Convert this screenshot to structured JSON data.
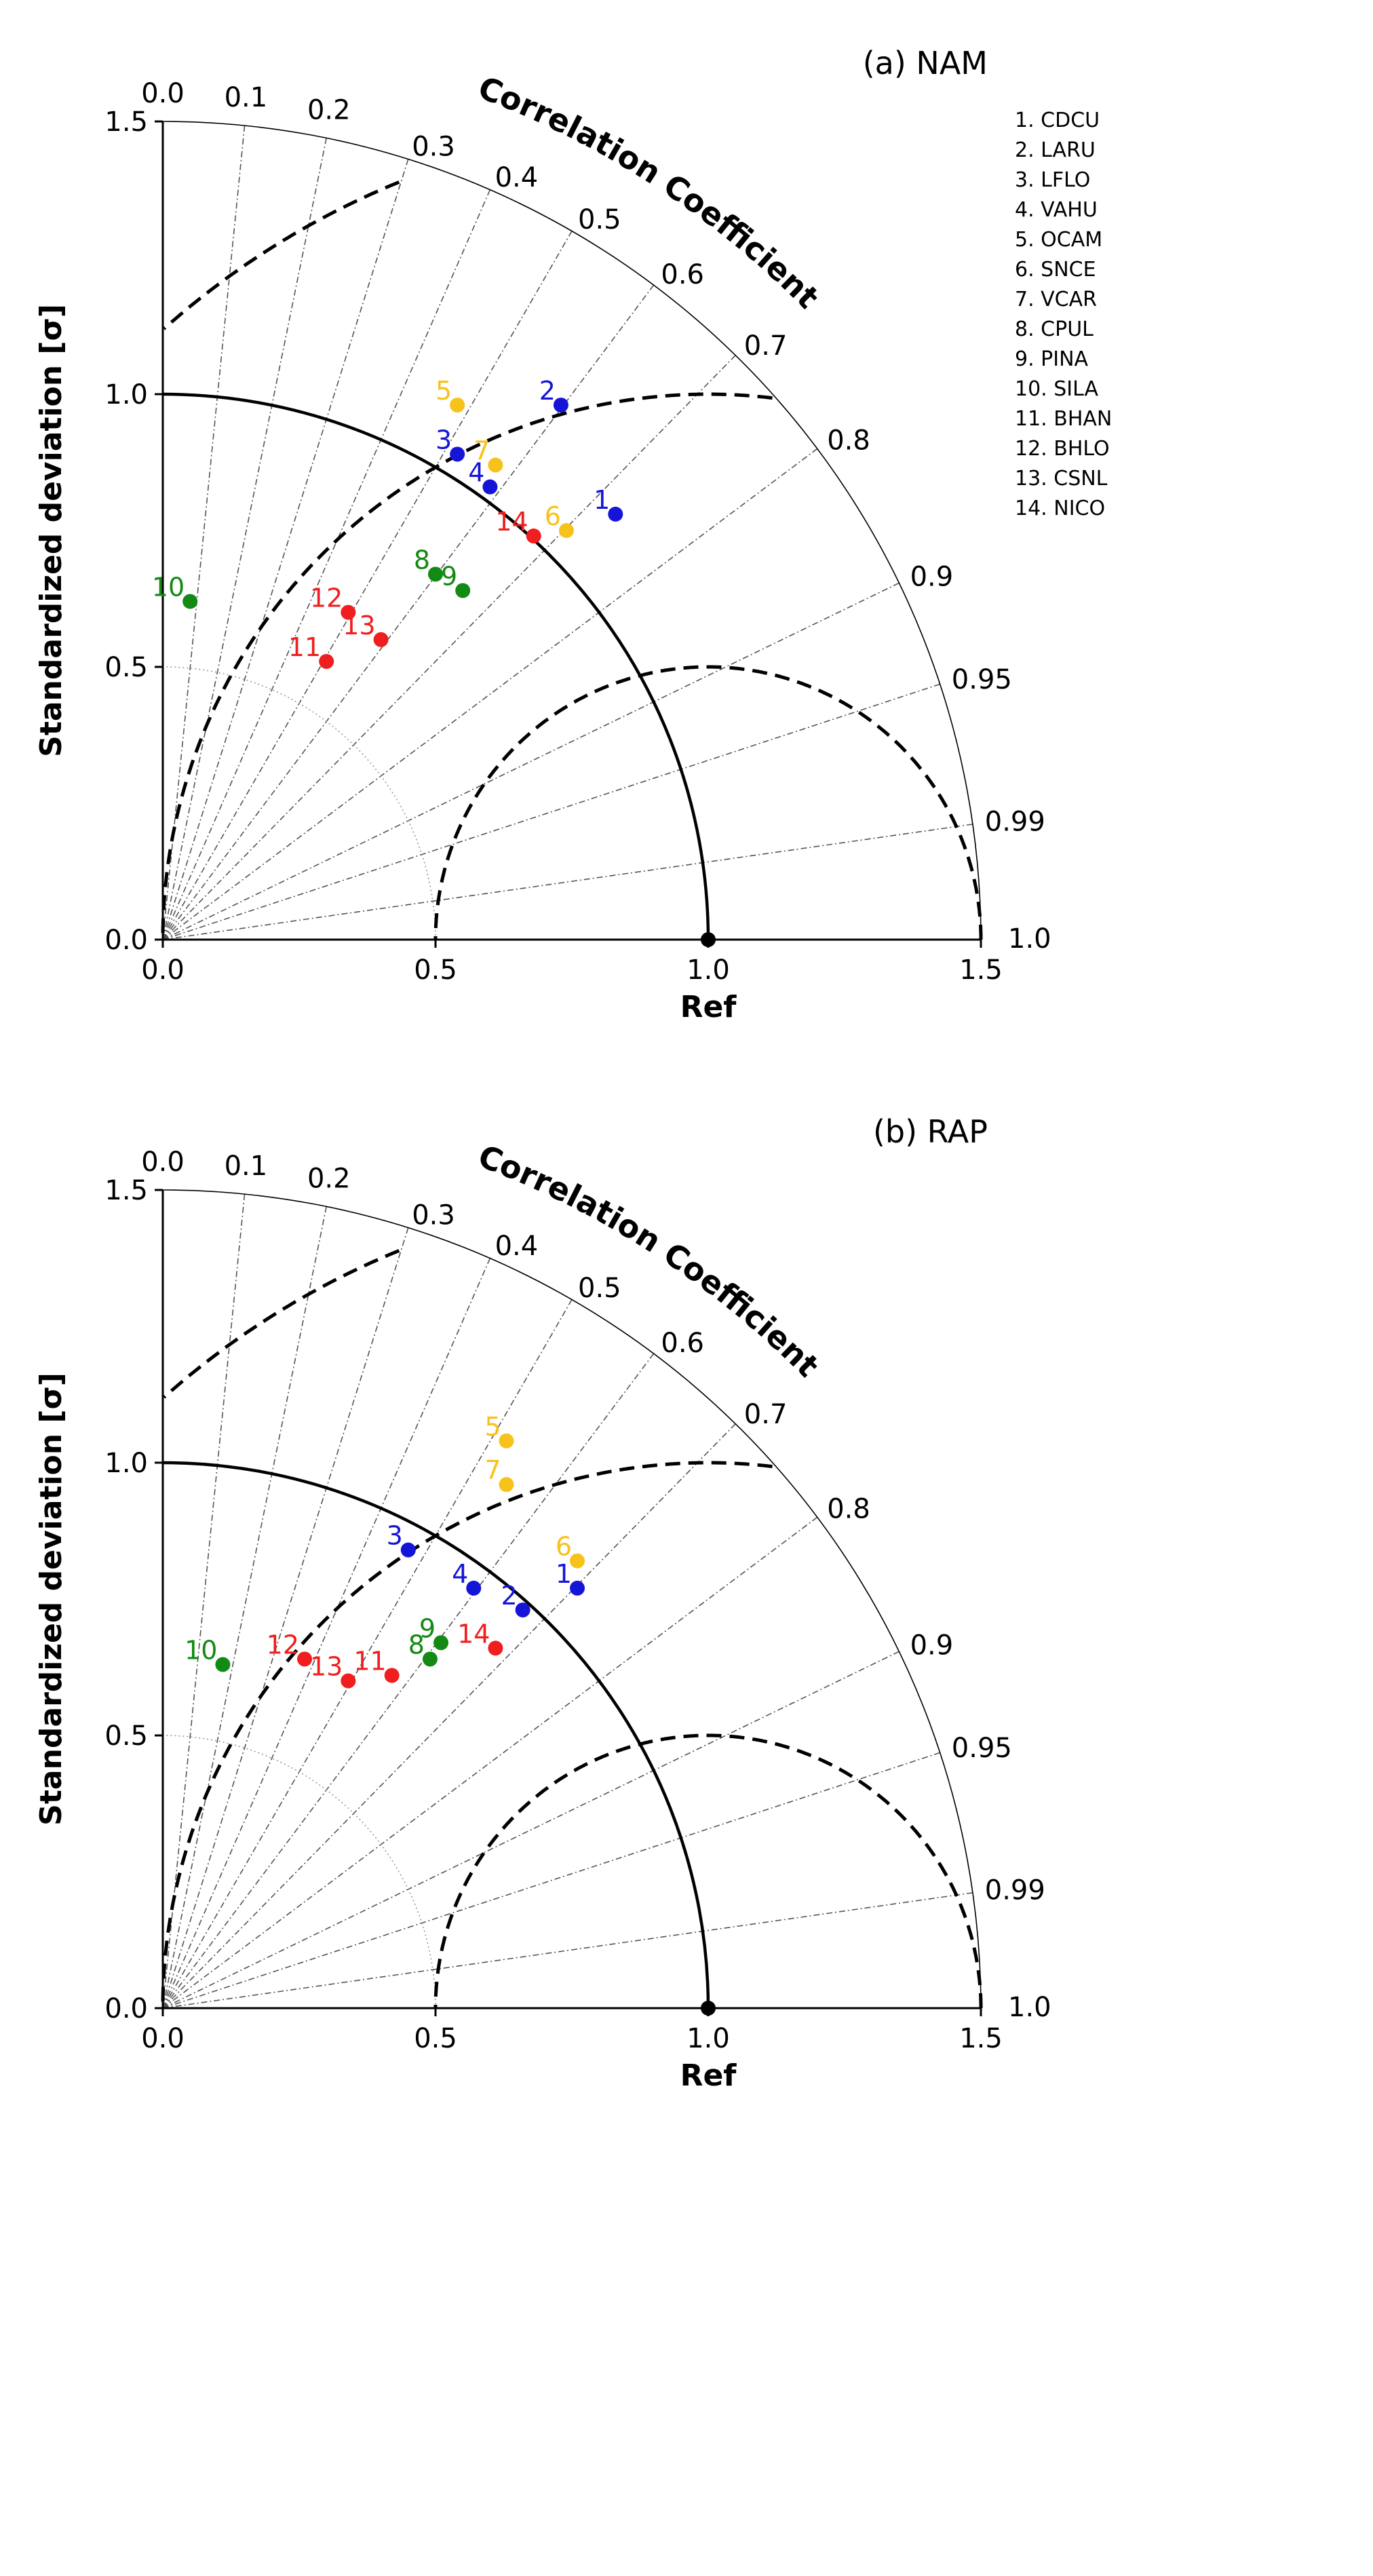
{
  "chart_data": [
    {
      "type": "scatter",
      "subtype": "taylor-diagram",
      "panel_title": "(a) NAM",
      "ylabel": "Standardized deviation [σ]",
      "xlabel": "Ref",
      "arc_label": "Correlation Coefficient",
      "axis_ticks": [
        "0.0",
        "0.5",
        "1.0",
        "1.5"
      ],
      "axis_tick_values": [
        0,
        0.5,
        1.0,
        1.5
      ],
      "std_range": [
        0,
        1.5
      ],
      "ref_std": 1.0,
      "corr_ticks": [
        "0.0",
        "0.1",
        "0.2",
        "0.3",
        "0.4",
        "0.5",
        "0.6",
        "0.7",
        "0.8",
        "0.9",
        "0.95",
        "0.99",
        "1.0"
      ],
      "corr_tick_values": [
        0.0,
        0.1,
        0.2,
        0.3,
        0.4,
        0.5,
        0.6,
        0.7,
        0.8,
        0.9,
        0.95,
        0.99,
        1.0
      ],
      "rmsd_contours": [
        0.5,
        1.0
      ],
      "legend": [
        "1. CDCU",
        "2. LARU",
        "3. LFLO",
        "4. VAHU",
        "5. OCAM",
        "6. SNCE",
        "7. VCAR",
        "8. CPUL",
        "9. PINA",
        "10. SILA",
        "11. BHAN",
        "12. BHLO",
        "13. CSNL",
        "14. NICO"
      ],
      "points": [
        {
          "label": "1",
          "x": 0.83,
          "y": 0.78,
          "color": "#1515d8"
        },
        {
          "label": "2",
          "x": 0.73,
          "y": 0.98,
          "color": "#1515d8"
        },
        {
          "label": "3",
          "x": 0.54,
          "y": 0.89,
          "color": "#1515d8"
        },
        {
          "label": "4",
          "x": 0.6,
          "y": 0.83,
          "color": "#1515d8"
        },
        {
          "label": "5",
          "x": 0.54,
          "y": 0.98,
          "color": "#f7c21b"
        },
        {
          "label": "6",
          "x": 0.74,
          "y": 0.75,
          "color": "#f7c21b"
        },
        {
          "label": "7",
          "x": 0.61,
          "y": 0.87,
          "color": "#f7c21b"
        },
        {
          "label": "8",
          "x": 0.5,
          "y": 0.67,
          "color": "#138a13"
        },
        {
          "label": "9",
          "x": 0.55,
          "y": 0.64,
          "color": "#138a13"
        },
        {
          "label": "10",
          "x": 0.05,
          "y": 0.62,
          "color": "#138a13"
        },
        {
          "label": "11",
          "x": 0.3,
          "y": 0.51,
          "color": "#f01e1e"
        },
        {
          "label": "12",
          "x": 0.34,
          "y": 0.6,
          "color": "#f01e1e"
        },
        {
          "label": "13",
          "x": 0.4,
          "y": 0.55,
          "color": "#f01e1e"
        },
        {
          "label": "14",
          "x": 0.68,
          "y": 0.74,
          "color": "#f01e1e"
        }
      ]
    },
    {
      "type": "scatter",
      "subtype": "taylor-diagram",
      "panel_title": "(b) RAP",
      "ylabel": "Standardized deviation [σ]",
      "xlabel": "Ref",
      "arc_label": "Correlation Coefficient",
      "axis_ticks": [
        "0.0",
        "0.5",
        "1.0",
        "1.5"
      ],
      "axis_tick_values": [
        0,
        0.5,
        1.0,
        1.5
      ],
      "std_range": [
        0,
        1.5
      ],
      "ref_std": 1.0,
      "corr_ticks": [
        "0.0",
        "0.1",
        "0.2",
        "0.3",
        "0.4",
        "0.5",
        "0.6",
        "0.7",
        "0.8",
        "0.9",
        "0.95",
        "0.99",
        "1.0"
      ],
      "corr_tick_values": [
        0.0,
        0.1,
        0.2,
        0.3,
        0.4,
        0.5,
        0.6,
        0.7,
        0.8,
        0.9,
        0.95,
        0.99,
        1.0
      ],
      "rmsd_contours": [
        0.5,
        1.0
      ],
      "points": [
        {
          "label": "1",
          "x": 0.76,
          "y": 0.77,
          "color": "#1515d8"
        },
        {
          "label": "2",
          "x": 0.66,
          "y": 0.73,
          "color": "#1515d8"
        },
        {
          "label": "3",
          "x": 0.45,
          "y": 0.84,
          "color": "#1515d8"
        },
        {
          "label": "4",
          "x": 0.57,
          "y": 0.77,
          "color": "#1515d8"
        },
        {
          "label": "5",
          "x": 0.63,
          "y": 1.04,
          "color": "#f7c21b"
        },
        {
          "label": "6",
          "x": 0.76,
          "y": 0.82,
          "color": "#f7c21b"
        },
        {
          "label": "7",
          "x": 0.63,
          "y": 0.96,
          "color": "#f7c21b"
        },
        {
          "label": "8",
          "x": 0.49,
          "y": 0.64,
          "color": "#138a13"
        },
        {
          "label": "9",
          "x": 0.51,
          "y": 0.67,
          "color": "#138a13"
        },
        {
          "label": "10",
          "x": 0.11,
          "y": 0.63,
          "color": "#138a13"
        },
        {
          "label": "11",
          "x": 0.42,
          "y": 0.61,
          "color": "#f01e1e"
        },
        {
          "label": "12",
          "x": 0.26,
          "y": 0.64,
          "color": "#f01e1e"
        },
        {
          "label": "13",
          "x": 0.34,
          "y": 0.6,
          "color": "#f01e1e"
        },
        {
          "label": "14",
          "x": 0.61,
          "y": 0.66,
          "color": "#f01e1e"
        }
      ]
    }
  ]
}
